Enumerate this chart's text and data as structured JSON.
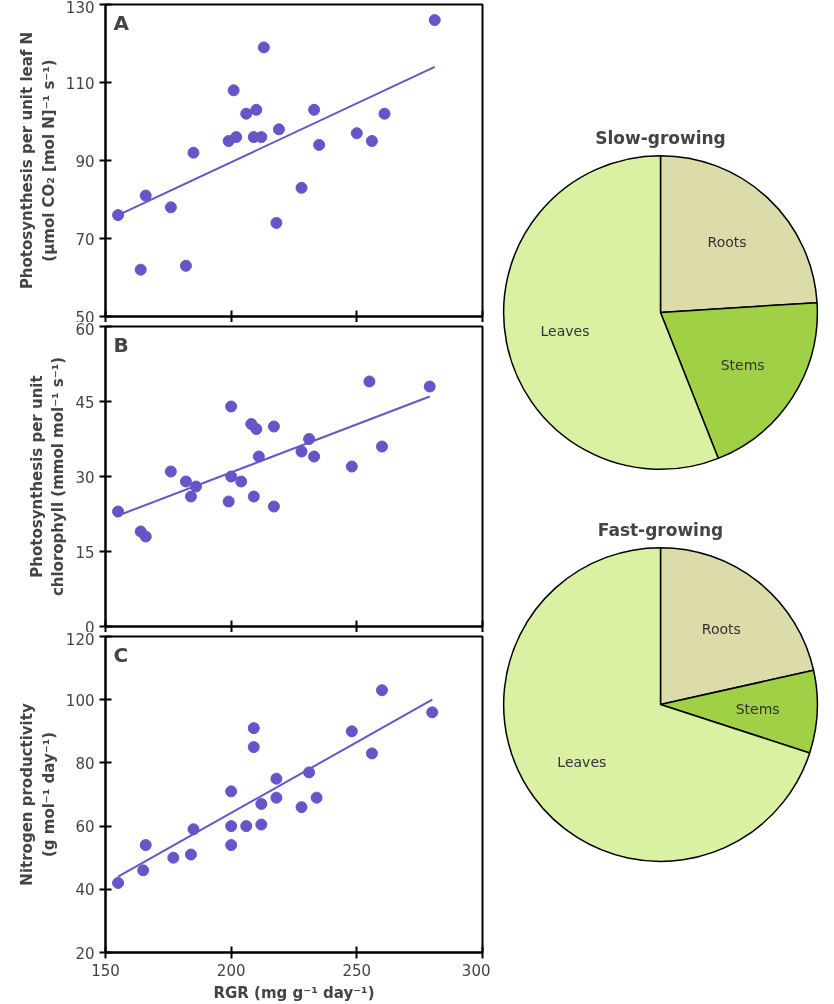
{
  "chart_data": [
    {
      "type": "scatter",
      "annotations": [
        "A"
      ],
      "ylabel": "Photosynthesis per unit leaf N\n(µmol CO₂ [mol N]⁻¹ s⁻¹)",
      "xlim": [
        150,
        300
      ],
      "xticks": [
        150,
        200,
        250,
        300
      ],
      "ylim": [
        50,
        130
      ],
      "yticks": [
        50,
        70,
        90,
        110,
        130
      ],
      "tick_labels": "y",
      "grid": false,
      "series": [
        {
          "color": "#6655c8",
          "marker": "circle",
          "x": [
            155,
            164,
            166,
            176,
            182,
            185,
            199,
            202,
            201,
            206,
            210,
            209,
            212,
            213,
            219,
            218,
            228,
            233,
            235,
            250,
            256,
            261,
            281
          ],
          "values": [
            76,
            62,
            81,
            78,
            63,
            92,
            95,
            96,
            108,
            102,
            103,
            96,
            96,
            119,
            98,
            74,
            83,
            103,
            94,
            97,
            95,
            102,
            126
          ]
        },
        {
          "type": "line",
          "marker": "none",
          "color": "#6655c8",
          "x": [
            155,
            281
          ],
          "values": [
            76,
            114
          ]
        }
      ]
    },
    {
      "type": "scatter",
      "annotations": [
        "B"
      ],
      "ylabel": "Photosynthesis per unit\nchlorophyll (mmol mol⁻¹ s⁻¹)",
      "xlim": [
        150,
        300
      ],
      "xticks": [
        150,
        200,
        250,
        300
      ],
      "ylim": [
        0,
        60
      ],
      "yticks": [
        0,
        15,
        30,
        45,
        60
      ],
      "tick_labels": "y",
      "grid": false,
      "series": [
        {
          "color": "#6655c8",
          "marker": "circle",
          "x": [
            155,
            164,
            166,
            176,
            182,
            186,
            184,
            199,
            200,
            200,
            204,
            208,
            210,
            209,
            211,
            217,
            217,
            228,
            231,
            233,
            248,
            255,
            260,
            279
          ],
          "values": [
            23,
            19,
            18,
            31,
            29,
            28,
            26,
            25,
            30,
            44,
            29,
            40.5,
            39.5,
            26,
            34,
            40,
            24,
            35,
            37.5,
            34,
            32,
            49,
            36,
            48
          ]
        },
        {
          "type": "line",
          "marker": "none",
          "color": "#6655c8",
          "x": [
            154,
            279
          ],
          "values": [
            22,
            46
          ]
        }
      ]
    },
    {
      "type": "scatter",
      "annotations": [
        "C"
      ],
      "xlabel": "RGR (mg g⁻¹ day⁻¹)",
      "ylabel": "Nitrogen productivity\n(g mol⁻¹ day⁻¹)",
      "xlim": [
        150,
        300
      ],
      "xticks": [
        150,
        200,
        250,
        300
      ],
      "ylim": [
        20,
        120
      ],
      "yticks": [
        20,
        40,
        60,
        80,
        100,
        120
      ],
      "grid": false,
      "series": [
        {
          "color": "#6655c8",
          "marker": "circle",
          "x": [
            155,
            165,
            166,
            177,
            184,
            185,
            200,
            200,
            200,
            206,
            209,
            209,
            212,
            212,
            218,
            218,
            228,
            231,
            234,
            248,
            256,
            260,
            280
          ],
          "values": [
            42,
            46,
            54,
            50,
            51,
            59,
            71,
            60,
            54,
            60,
            91,
            85,
            60.5,
            67,
            75,
            69,
            66,
            77,
            69,
            90,
            83,
            103,
            96
          ]
        },
        {
          "type": "line",
          "marker": "none",
          "color": "#6655c8",
          "x": [
            155,
            280
          ],
          "values": [
            44,
            100
          ]
        }
      ]
    },
    {
      "type": "pie",
      "title": "Slow-growing",
      "categories": [
        "Roots",
        "Stems",
        "Leaves"
      ],
      "values": [
        24,
        20,
        56
      ],
      "colors": [
        "#dcdcaa",
        "#9fd046",
        "#daf0a2"
      ]
    },
    {
      "type": "pie",
      "title": "Fast-growing",
      "categories": [
        "Roots",
        "Stems",
        "Leaves"
      ],
      "values": [
        21.5,
        8.5,
        70
      ],
      "colors": [
        "#dcdcaa",
        "#9fd046",
        "#daf0a2"
      ]
    }
  ]
}
